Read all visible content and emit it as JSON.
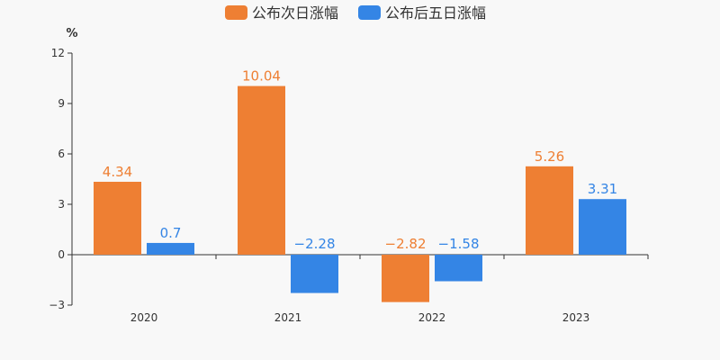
{
  "chart_data": {
    "type": "bar",
    "categories": [
      "2020",
      "2021",
      "2022",
      "2023"
    ],
    "series": [
      {
        "name": "公布次日涨幅",
        "color": "#ee7f33",
        "values": [
          4.34,
          10.04,
          -2.82,
          5.26
        ],
        "labels": [
          "4.34",
          "10.04",
          "−2.82",
          "5.26"
        ]
      },
      {
        "name": "公布后五日涨幅",
        "color": "#3485e5",
        "values": [
          0.7,
          -2.28,
          -1.58,
          3.31
        ],
        "labels": [
          "0.7",
          "−2.28",
          "−1.58",
          "3.31"
        ]
      }
    ],
    "yunit": "%",
    "ylim": [
      -3,
      12
    ],
    "yticks": [
      -3,
      0,
      3,
      6,
      9,
      12
    ],
    "ytick_labels": [
      "−3",
      "0",
      "3",
      "6",
      "9",
      "12"
    ],
    "grid": false,
    "legend_position": "top-center"
  }
}
